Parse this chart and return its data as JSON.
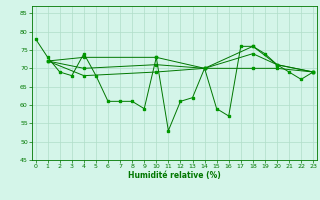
{
  "xlabel": "Humidité relative (%)",
  "background_color": "#d4f5e9",
  "grid_color": "#b0ddc8",
  "line_color": "#007700",
  "marker_color": "#009900",
  "xlim": [
    0,
    23
  ],
  "ylim": [
    45,
    87
  ],
  "yticks": [
    45,
    50,
    55,
    60,
    65,
    70,
    75,
    80,
    85
  ],
  "xticks": [
    0,
    1,
    2,
    3,
    4,
    5,
    6,
    7,
    8,
    9,
    10,
    11,
    12,
    13,
    14,
    15,
    16,
    17,
    18,
    19,
    20,
    21,
    22,
    23
  ],
  "line_jagged_x": [
    0,
    1,
    2,
    3,
    4,
    5,
    6,
    7,
    8,
    9,
    10,
    11,
    12,
    13,
    14,
    15,
    16,
    17,
    18,
    19,
    20,
    21,
    22,
    23
  ],
  "line_jagged_y": [
    78,
    73,
    69,
    68,
    74,
    68,
    61,
    61,
    61,
    59,
    73,
    53,
    61,
    62,
    70,
    59,
    57,
    76,
    76,
    74,
    71,
    69,
    67,
    69
  ],
  "line_upper_x": [
    1,
    4,
    10,
    14,
    18,
    20,
    23
  ],
  "line_upper_y": [
    72,
    73,
    73,
    70,
    76,
    71,
    69
  ],
  "line_mid_x": [
    1,
    4,
    10,
    14,
    18,
    20,
    23
  ],
  "line_mid_y": [
    72,
    70,
    71,
    70,
    74,
    71,
    69
  ],
  "line_lower_x": [
    1,
    4,
    10,
    14,
    18,
    20,
    23
  ],
  "line_lower_y": [
    72,
    68,
    69,
    70,
    70,
    70,
    69
  ]
}
